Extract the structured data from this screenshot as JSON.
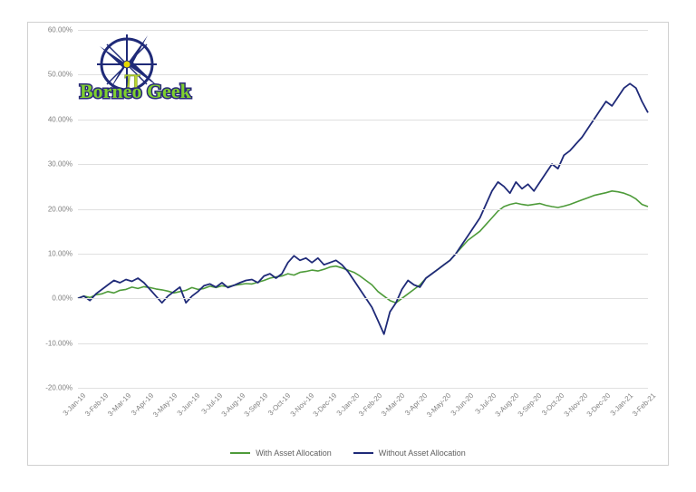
{
  "chart": {
    "type": "line",
    "background_color": "#ffffff",
    "grid_color": "#e0e0e0",
    "axis_font_color": "#808080",
    "axis_font_size": 8,
    "ylim": [
      -20,
      60
    ],
    "ytick_step": 10,
    "y_labels": [
      "-20.00%",
      "-10.00%",
      "0.00%",
      "10.00%",
      "20.00%",
      "30.00%",
      "40.00%",
      "50.00%",
      "60.00%"
    ],
    "x_labels": [
      "3-Jan-19",
      "3-Feb-19",
      "3-Mar-19",
      "3-Apr-19",
      "3-May-19",
      "3-Jun-19",
      "3-Jul-19",
      "3-Aug-19",
      "3-Sep-19",
      "3-Oct-19",
      "3-Nov-19",
      "3-Dec-19",
      "3-Jan-20",
      "3-Feb-20",
      "3-Mar-20",
      "3-Apr-20",
      "3-May-20",
      "3-Jun-20",
      "3-Jul-20",
      "3-Aug-20",
      "3-Sep-20",
      "3-Oct-20",
      "3-Nov-20",
      "3-Dec-20",
      "3-Jan-21",
      "3-Feb-21"
    ],
    "series": [
      {
        "name": "With Asset Allocation",
        "color": "#4e9b3a",
        "line_width": 1.6,
        "values": [
          0,
          0.5,
          0.2,
          0.8,
          1.0,
          1.5,
          1.2,
          1.8,
          2.0,
          2.5,
          2.2,
          2.6,
          2.4,
          2.1,
          1.9,
          1.6,
          1.2,
          1.5,
          1.8,
          2.4,
          2.0,
          2.2,
          2.7,
          2.4,
          2.8,
          2.6,
          2.9,
          3.1,
          3.3,
          3.2,
          3.6,
          4.0,
          4.5,
          4.8,
          5.0,
          5.5,
          5.2,
          5.8,
          6.0,
          6.3,
          6.1,
          6.5,
          7.0,
          7.2,
          6.8,
          6.3,
          5.8,
          5.0,
          4.0,
          3.0,
          1.5,
          0.5,
          -0.5,
          -1.0,
          0.0,
          1.0,
          2.0,
          3.0,
          4.5,
          5.5,
          6.5,
          7.5,
          8.5,
          10.0,
          11.5,
          13.0,
          14.0,
          15.0,
          16.5,
          18.0,
          19.5,
          20.5,
          21.0,
          21.3,
          21.0,
          20.8,
          21.0,
          21.2,
          20.8,
          20.5,
          20.3,
          20.6,
          21.0,
          21.5,
          22.0,
          22.5,
          23.0,
          23.3,
          23.6,
          24.0,
          23.8,
          23.5,
          23.0,
          22.2,
          21.0,
          20.5
        ]
      },
      {
        "name": "Without Asset Allocation",
        "color": "#1f2a78",
        "line_width": 1.8,
        "values": [
          0,
          0.5,
          -0.5,
          1.0,
          2.0,
          3.0,
          4.0,
          3.5,
          4.2,
          3.8,
          4.5,
          3.5,
          2.0,
          0.5,
          -1.0,
          0.5,
          1.5,
          2.5,
          -1.0,
          0.5,
          1.5,
          2.8,
          3.2,
          2.5,
          3.5,
          2.4,
          2.9,
          3.5,
          4.0,
          4.2,
          3.5,
          5.0,
          5.5,
          4.5,
          5.5,
          8.0,
          9.5,
          8.5,
          9.0,
          8.0,
          9.0,
          7.5,
          8.0,
          8.5,
          7.5,
          6.0,
          4.0,
          2.0,
          0.0,
          -2.0,
          -5.0,
          -8.0,
          -3.0,
          -1.0,
          2.0,
          4.0,
          3.0,
          2.5,
          4.5,
          5.5,
          6.5,
          7.5,
          8.5,
          10.0,
          12.0,
          14.0,
          16.0,
          18.0,
          21.0,
          24.0,
          26.0,
          25.0,
          23.5,
          26.0,
          24.5,
          25.5,
          24.0,
          26.0,
          28.0,
          30.0,
          29.0,
          32.0,
          33.0,
          34.5,
          36.0,
          38.0,
          40.0,
          42.0,
          44.0,
          43.0,
          45.0,
          47.0,
          48.0,
          47.0,
          44.0,
          41.5
        ]
      }
    ],
    "legend_font_size": 9,
    "legend_font_color": "#606060",
    "frame_border_color": "#d0d0d0"
  },
  "logo": {
    "brand_text": "Borneo   Geek",
    "brand_outline": "#2a2a7a",
    "brand_fill": "#7fd02e",
    "compass_color": "#1f2a78",
    "compass_accent": "#e6d800",
    "pi_color": "#b8d430"
  }
}
